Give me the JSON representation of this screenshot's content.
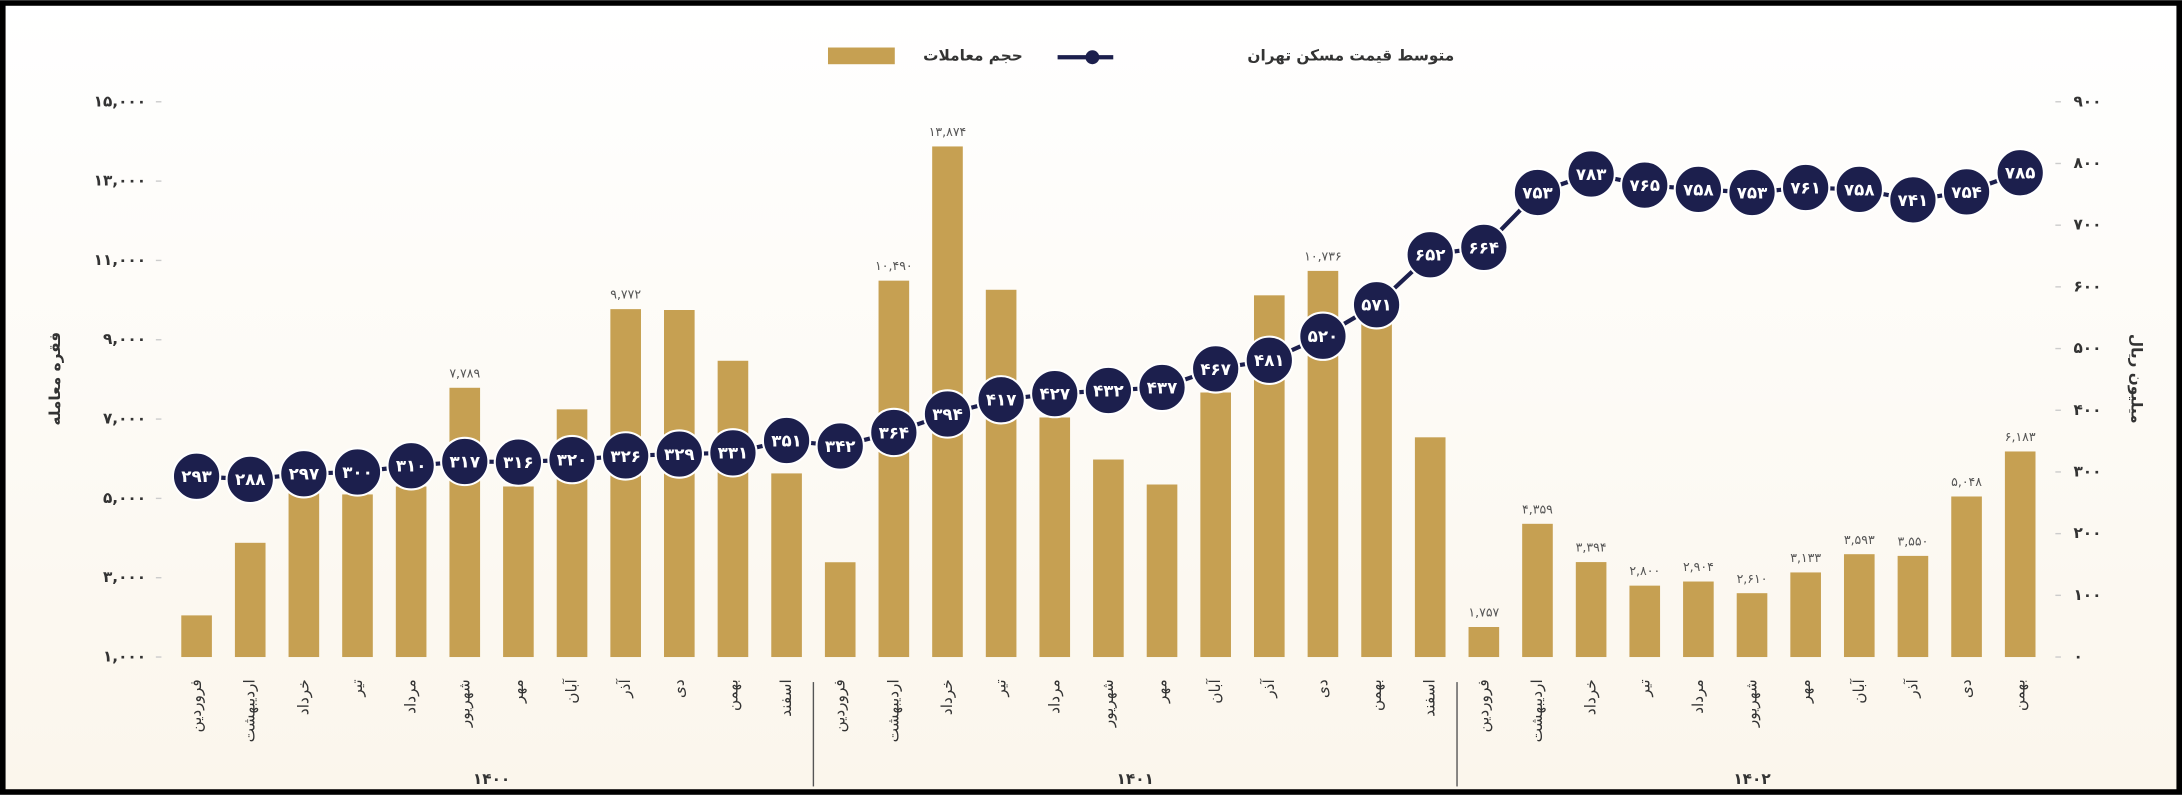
{
  "chart_data": {
    "type": "bar_line",
    "legend": "top",
    "categories": [
      "فروردین",
      "اردیبهشت",
      "خرداد",
      "تیر",
      "مرداد",
      "شهریور",
      "مهر",
      "آبان",
      "آذر",
      "دی",
      "بهمن",
      "اسفند",
      "فروردین",
      "اردیبهشت",
      "خرداد",
      "تیر",
      "مرداد",
      "شهریور",
      "مهر",
      "آبان",
      "آذر",
      "دی",
      "بهمن",
      "اسفند",
      "فروردین",
      "اردیبهشت",
      "خرداد",
      "تیر",
      "مرداد",
      "شهریور",
      "مهر",
      "آبان",
      "آذر",
      "دی",
      "بهمن"
    ],
    "groups": [
      "۱۴۰۰",
      "۱۴۰۱",
      "۱۴۰۲"
    ],
    "ylabel": "فقره معامله",
    "y2label": "میلیون ریال",
    "ylim": [
      1000,
      15000
    ],
    "yticks": [
      {
        "value": 1000,
        "label": "۱,۰۰۰"
      },
      {
        "value": 3000,
        "label": "۳,۰۰۰"
      },
      {
        "value": 5000,
        "label": "۵,۰۰۰"
      },
      {
        "value": 7000,
        "label": "۷,۰۰۰"
      },
      {
        "value": 9000,
        "label": "۹,۰۰۰"
      },
      {
        "value": 11000,
        "label": "۱۱,۰۰۰"
      },
      {
        "value": 13000,
        "label": "۱۳,۰۰۰"
      },
      {
        "value": 15000,
        "label": "۱۵,۰۰۰"
      }
    ],
    "y2lim": [
      0,
      900
    ],
    "y2ticks": [
      {
        "value": 0,
        "label": "۰"
      },
      {
        "value": 100,
        "label": "۱۰۰"
      },
      {
        "value": 200,
        "label": "۲۰۰"
      },
      {
        "value": 300,
        "label": "۳۰۰"
      },
      {
        "value": 400,
        "label": "۴۰۰"
      },
      {
        "value": 500,
        "label": "۵۰۰"
      },
      {
        "value": 600,
        "label": "۶۰۰"
      },
      {
        "value": 700,
        "label": "۷۰۰"
      },
      {
        "value": 800,
        "label": "۸۰۰"
      },
      {
        "value": 900,
        "label": "۹۰۰"
      }
    ],
    "series": [
      {
        "name": "حجم معاملات",
        "type": "bar",
        "color": "#c6a052",
        "values": [
          2050,
          3880,
          5280,
          5100,
          5300,
          7789,
          5300,
          7245,
          9772,
          9750,
          8470,
          5630,
          3390,
          10490,
          13874,
          10260,
          7040,
          5980,
          5350,
          7670,
          10120,
          10736,
          9490,
          6540,
          1757,
          4359,
          3394,
          2800,
          2904,
          2610,
          3133,
          3593,
          3550,
          5048,
          6183
        ],
        "value_labels": [
          null,
          null,
          null,
          null,
          null,
          "۷,۷۸۹",
          null,
          null,
          "۹,۷۷۲",
          null,
          null,
          null,
          null,
          "۱۰,۴۹۰",
          "۱۳,۸۷۴",
          null,
          null,
          null,
          null,
          null,
          null,
          "۱۰,۷۳۶",
          null,
          null,
          "۱,۷۵۷",
          "۴,۳۵۹",
          "۳,۳۹۴",
          "۲,۸۰۰",
          "۲,۹۰۴",
          "۲,۶۱۰",
          "۳,۱۳۳",
          "۳,۵۹۳",
          "۳,۵۵۰",
          "۵,۰۴۸",
          "۶,۱۸۳"
        ]
      },
      {
        "name": "متوسط قیمت مسکن تهران",
        "type": "line",
        "axis": "y2",
        "color": "#1c1f4d",
        "values": [
          293,
          288,
          297,
          300,
          310,
          317,
          316,
          320,
          326,
          329,
          331,
          351,
          342,
          364,
          394,
          417,
          427,
          432,
          437,
          467,
          481,
          520,
          571,
          652,
          664,
          753,
          783,
          765,
          758,
          753,
          761,
          758,
          741,
          754,
          785
        ],
        "value_labels": [
          "۲۹۳",
          "۲۸۸",
          "۲۹۷",
          "۳۰۰",
          "۳۱۰",
          "۳۱۷",
          "۳۱۶",
          "۳۲۰",
          "۳۲۶",
          "۳۲۹",
          "۳۳۱",
          "۳۵۱",
          "۳۴۲",
          "۳۶۴",
          "۳۹۴",
          "۴۱۷",
          "۴۲۷",
          "۴۳۲",
          "۴۳۷",
          "۴۶۷",
          "۴۸۱",
          "۵۲۰",
          "۵۷۱",
          "۶۵۲",
          "۶۶۴",
          "۷۵۳",
          "۷۸۳",
          "۷۶۵",
          "۷۵۸",
          "۷۵۳",
          "۷۶۱",
          "۷۵۸",
          "۷۴۱",
          "۷۵۴",
          "۷۸۵"
        ]
      }
    ]
  }
}
